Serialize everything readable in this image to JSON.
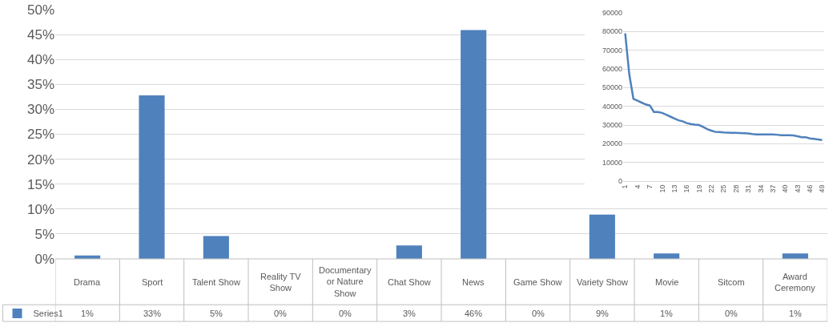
{
  "chart_data": [
    {
      "type": "bar",
      "categories": [
        "Drama",
        "Sport",
        "Talent Show",
        "Reality TV Show",
        "Documentary or Nature Show",
        "Chat Show",
        "News",
        "Game Show",
        "Variety Show",
        "Movie",
        "Sitcom",
        "Award Ceremony"
      ],
      "series": [
        {
          "name": "Series1",
          "color": "#4f81bd",
          "values": [
            0.7,
            32.8,
            4.6,
            0,
            0,
            2.7,
            45.9,
            0,
            8.9,
            1.1,
            0,
            1.1
          ],
          "value_labels": [
            "1%",
            "33%",
            "5%",
            "0%",
            "0%",
            "3%",
            "46%",
            "0%",
            "9%",
            "1%",
            "0%",
            "1%"
          ]
        }
      ],
      "ylim": [
        0,
        50
      ],
      "yticks": [
        {
          "value": 0,
          "label": "0%"
        },
        {
          "value": 5,
          "label": "5%"
        },
        {
          "value": 10,
          "label": "10%"
        },
        {
          "value": 15,
          "label": "15%"
        },
        {
          "value": 20,
          "label": "20%"
        },
        {
          "value": 25,
          "label": "25%"
        },
        {
          "value": 30,
          "label": "30%"
        },
        {
          "value": 35,
          "label": "35%"
        },
        {
          "value": 40,
          "label": "40%"
        },
        {
          "value": 45,
          "label": "45%"
        },
        {
          "value": 50,
          "label": "50%"
        }
      ],
      "grid": "y",
      "legend": "bottom left"
    },
    {
      "type": "line",
      "x": [
        1,
        2,
        3,
        4,
        5,
        6,
        7,
        8,
        9,
        10,
        11,
        12,
        13,
        14,
        15,
        16,
        17,
        18,
        19,
        20,
        21,
        22,
        23,
        24,
        25,
        26,
        27,
        28,
        29,
        30,
        31,
        32,
        33,
        34,
        35,
        36,
        37,
        38,
        39,
        40,
        41,
        42,
        43,
        44,
        45,
        46,
        47,
        48,
        49
      ],
      "series": [
        {
          "color": "#4f81bd",
          "values": [
            79000,
            57000,
            44000,
            43000,
            42000,
            41000,
            40500,
            37000,
            37000,
            36500,
            35500,
            34500,
            33500,
            32500,
            32000,
            31000,
            30500,
            30200,
            30000,
            29000,
            27800,
            27000,
            26300,
            26200,
            26000,
            25900,
            25800,
            25800,
            25700,
            25600,
            25500,
            25200,
            25000,
            25000,
            25000,
            25000,
            25000,
            24800,
            24500,
            24500,
            24500,
            24400,
            24000,
            23500,
            23500,
            22800,
            22600,
            22300,
            22000
          ]
        }
      ],
      "xlim": [
        0.5,
        49.5
      ],
      "xticks": [
        1,
        4,
        7,
        10,
        13,
        16,
        19,
        22,
        25,
        28,
        31,
        34,
        37,
        40,
        43,
        46,
        49
      ],
      "ylim": [
        0,
        90000
      ],
      "yticks": [
        0,
        10000,
        20000,
        30000,
        40000,
        50000,
        60000,
        70000,
        80000,
        90000
      ],
      "grid": "y"
    }
  ]
}
